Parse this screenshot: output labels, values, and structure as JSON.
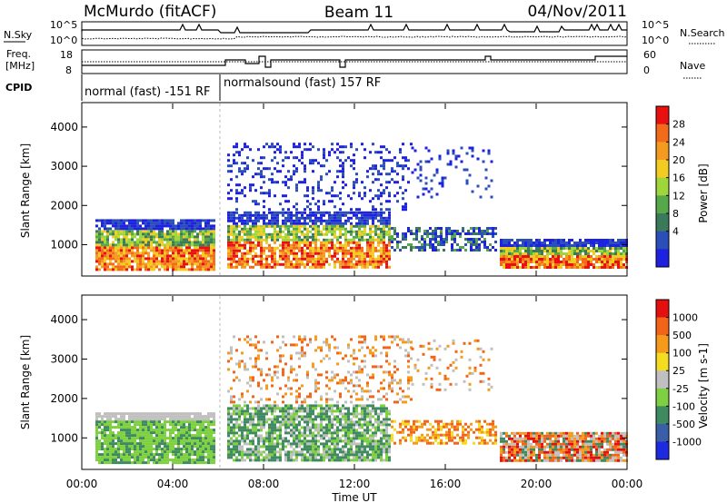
{
  "header": {
    "station": "McMurdo (fitACF)",
    "beam": "Beam 11",
    "date": "04/Nov/2011"
  },
  "sky_panel": {
    "label": "N.Sky",
    "search_label": "N.Search",
    "tick_top": "10^5",
    "tick_bottom": "10^0"
  },
  "freq_panel": {
    "label_line1": "Freq.",
    "label_line2": "[MHz]",
    "nave_label": "Nave",
    "left_ticks": [
      "18",
      "8"
    ],
    "right_ticks": [
      "60",
      "0"
    ]
  },
  "cpid": {
    "label": "CPID",
    "segments": [
      "normal (fast) -151 RF",
      "normalsound (fast) 157 RF"
    ]
  },
  "chart_data": [
    {
      "type": "heatmap",
      "parameter": "Power",
      "ylabel": "Slant Range [km]",
      "xlabel": "Time UT",
      "ylim": [
        200,
        4600
      ],
      "x_ticks": [
        "00:00",
        "04:00",
        "08:00",
        "12:00",
        "16:00",
        "20:00",
        "00:00"
      ],
      "y_ticks": [
        1000,
        2000,
        3000,
        4000
      ],
      "colorbar": {
        "label": "Power [dB]",
        "ticks": [
          4,
          8,
          12,
          16,
          20,
          24,
          28
        ],
        "colors": [
          "#1e22e0",
          "#2b4fb8",
          "#3a7a5a",
          "#56a84a",
          "#9fd63a",
          "#f2cc20",
          "#f59a20",
          "#f26a1a",
          "#e81010"
        ]
      },
      "regions": [
        {
          "t0": 0.6,
          "t1": 5.8,
          "r0": 400,
          "r1": 1700,
          "level": "mixed",
          "note": "strong echoes near 700 km"
        },
        {
          "t0": 6.4,
          "t1": 13.5,
          "r0": 500,
          "r1": 1800,
          "level": "high"
        },
        {
          "t0": 6.4,
          "t1": 15.0,
          "r0": 2000,
          "r1": 3600,
          "level": "low"
        },
        {
          "t0": 13.5,
          "t1": 18.0,
          "r0": 900,
          "r1": 1400,
          "level": "low"
        },
        {
          "t0": 18.5,
          "t1": 24.0,
          "r0": 500,
          "r1": 1100,
          "level": "high"
        }
      ]
    },
    {
      "type": "heatmap",
      "parameter": "Velocity",
      "ylabel": "Slant Range [km]",
      "xlabel": "Time UT",
      "ylim": [
        200,
        4600
      ],
      "x_ticks": [
        "00:00",
        "04:00",
        "08:00",
        "12:00",
        "16:00",
        "20:00",
        "00:00"
      ],
      "y_ticks": [
        1000,
        2000,
        3000,
        4000
      ],
      "colorbar": {
        "label": "Velocity [m s-1]",
        "ticks": [
          "1000",
          "500",
          "100",
          "25",
          "-25",
          "-100",
          "-500",
          "-1000"
        ],
        "colors": [
          "#1e2adf",
          "#3a5fa8",
          "#3f8a60",
          "#7ed040",
          "#c0c0c0",
          "#f4dc20",
          "#f59a1a",
          "#f26518",
          "#e41010"
        ]
      }
    }
  ]
}
